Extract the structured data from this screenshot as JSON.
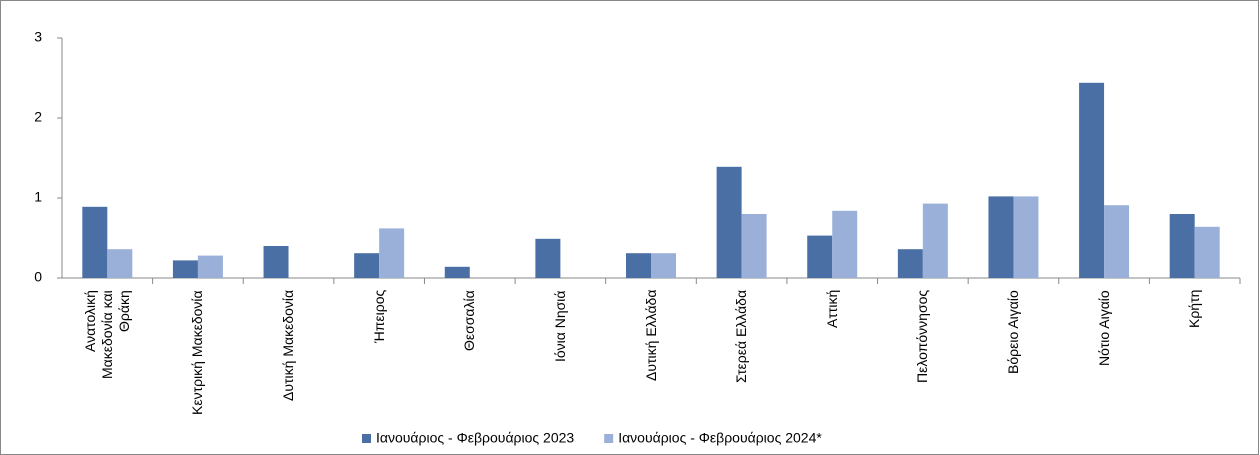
{
  "chart_data": {
    "type": "bar",
    "categories": [
      "Ανατολική Μακεδονία και Θράκη",
      "Κεντρική Μακεδονία",
      "Δυτική Μακεδονία",
      "Ήπειρος",
      "Θεσσαλία",
      "Ιόνια Νησιά",
      "Δυτική Ελλάδα",
      "Στερεά Ελλάδα",
      "Αττική",
      "Πελοπόννησος",
      "Βόρειο Αιγαίο",
      "Νότιο Αιγαίο",
      "Κρήτη"
    ],
    "series": [
      {
        "name": "Ιανουάριος - Φεβρουάριος 2023",
        "color": "#4a6fa5",
        "values": [
          0.89,
          0.22,
          0.4,
          0.31,
          0.14,
          0.49,
          0.31,
          1.39,
          0.53,
          0.36,
          1.02,
          2.44,
          0.8
        ]
      },
      {
        "name": "Ιανουάριος - Φεβρουάριος 2024*",
        "color": "#9bb0d8",
        "values": [
          0.36,
          0.28,
          0,
          0.62,
          0,
          0,
          0.31,
          0.8,
          0.84,
          0.93,
          1.02,
          0.91,
          0.64
        ]
      }
    ],
    "ylim": [
      0,
      3
    ],
    "yticks": [
      0,
      1,
      2,
      3
    ],
    "grid": false
  }
}
